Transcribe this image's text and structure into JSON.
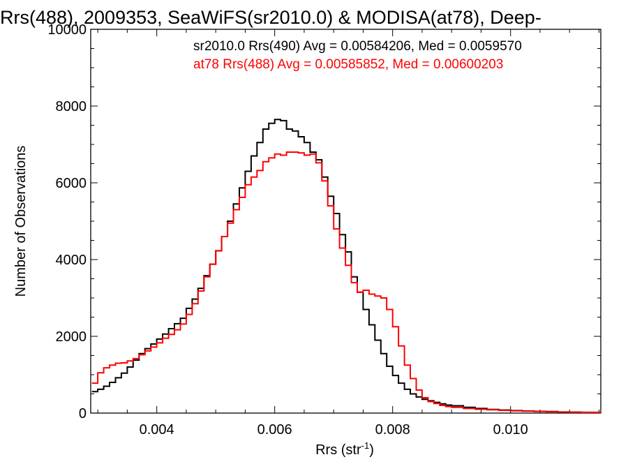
{
  "chart_data": {
    "type": "line",
    "title": "Rrs(488), 2009353, SeaWiFS(sr2010.0) & MODISA(at78), Deep-",
    "xlabel_main": "Rrs (str",
    "xlabel_sup": "-1",
    "xlabel_close": ")",
    "ylabel": "Number of Observations",
    "xlim": [
      0.00288,
      0.01153
    ],
    "ylim": [
      0,
      10000
    ],
    "x_ticks": [
      {
        "value": 0.004,
        "label": "0.004"
      },
      {
        "value": 0.006,
        "label": "0.006"
      },
      {
        "value": 0.008,
        "label": "0.008"
      },
      {
        "value": 0.01,
        "label": "0.010"
      }
    ],
    "y_ticks": [
      {
        "value": 0,
        "label": "0"
      },
      {
        "value": 2000,
        "label": "2000"
      },
      {
        "value": 4000,
        "label": "4000"
      },
      {
        "value": 6000,
        "label": "6000"
      },
      {
        "value": 8000,
        "label": "8000"
      },
      {
        "value": 10000,
        "label": "10000"
      }
    ],
    "grid": false,
    "legend_placement": "top-right",
    "series": [
      {
        "name": "sr2010.0 Rrs(490) Avg = 0.00584206, Med = 0.0059570",
        "color": "#000000",
        "points": [
          [
            0.0029,
            560
          ],
          [
            0.003,
            620
          ],
          [
            0.0031,
            700
          ],
          [
            0.0032,
            800
          ],
          [
            0.0033,
            920
          ],
          [
            0.0034,
            1040
          ],
          [
            0.0035,
            1200
          ],
          [
            0.0036,
            1380
          ],
          [
            0.0037,
            1550
          ],
          [
            0.0038,
            1680
          ],
          [
            0.0039,
            1800
          ],
          [
            0.004,
            1930
          ],
          [
            0.0041,
            2060
          ],
          [
            0.0042,
            2200
          ],
          [
            0.0043,
            2330
          ],
          [
            0.0044,
            2470
          ],
          [
            0.0045,
            2730
          ],
          [
            0.0046,
            2970
          ],
          [
            0.0047,
            3250
          ],
          [
            0.0048,
            3580
          ],
          [
            0.0049,
            3880
          ],
          [
            0.005,
            4230
          ],
          [
            0.0051,
            4600
          ],
          [
            0.0052,
            5000
          ],
          [
            0.0053,
            5450
          ],
          [
            0.0054,
            5870
          ],
          [
            0.0055,
            6300
          ],
          [
            0.0056,
            6700
          ],
          [
            0.0057,
            7050
          ],
          [
            0.0058,
            7400
          ],
          [
            0.0059,
            7550
          ],
          [
            0.006,
            7650
          ],
          [
            0.0061,
            7620
          ],
          [
            0.0062,
            7400
          ],
          [
            0.0063,
            7350
          ],
          [
            0.0064,
            7200
          ],
          [
            0.0065,
            7050
          ],
          [
            0.0066,
            6800
          ],
          [
            0.0067,
            6600
          ],
          [
            0.0068,
            6150
          ],
          [
            0.0069,
            5650
          ],
          [
            0.007,
            5200
          ],
          [
            0.0071,
            4650
          ],
          [
            0.0072,
            4200
          ],
          [
            0.0073,
            3550
          ],
          [
            0.0074,
            3150
          ],
          [
            0.0075,
            2700
          ],
          [
            0.0076,
            2300
          ],
          [
            0.0077,
            1900
          ],
          [
            0.0078,
            1550
          ],
          [
            0.0079,
            1220
          ],
          [
            0.008,
            980
          ],
          [
            0.0081,
            780
          ],
          [
            0.0082,
            620
          ],
          [
            0.0083,
            500
          ],
          [
            0.0084,
            420
          ],
          [
            0.0085,
            360
          ],
          [
            0.0086,
            320
          ],
          [
            0.0087,
            280
          ],
          [
            0.0088,
            240
          ],
          [
            0.0089,
            210
          ],
          [
            0.009,
            190
          ],
          [
            0.0092,
            150
          ],
          [
            0.0094,
            120
          ],
          [
            0.0096,
            95
          ],
          [
            0.0098,
            80
          ],
          [
            0.01,
            65
          ],
          [
            0.0102,
            55
          ],
          [
            0.0104,
            45
          ],
          [
            0.0106,
            40
          ],
          [
            0.0108,
            30
          ],
          [
            0.011,
            25
          ],
          [
            0.0112,
            20
          ],
          [
            0.0115,
            15
          ]
        ]
      },
      {
        "name": "at78 Rrs(488) Avg = 0.00585852, Med = 0.00600203",
        "color": "#ff0000",
        "points": [
          [
            0.0029,
            780
          ],
          [
            0.003,
            1050
          ],
          [
            0.0031,
            1180
          ],
          [
            0.0032,
            1250
          ],
          [
            0.0033,
            1300
          ],
          [
            0.0034,
            1310
          ],
          [
            0.0035,
            1360
          ],
          [
            0.0036,
            1420
          ],
          [
            0.0037,
            1520
          ],
          [
            0.0038,
            1620
          ],
          [
            0.0039,
            1720
          ],
          [
            0.004,
            1830
          ],
          [
            0.0041,
            1950
          ],
          [
            0.0042,
            2050
          ],
          [
            0.0043,
            2170
          ],
          [
            0.0044,
            2320
          ],
          [
            0.0045,
            2570
          ],
          [
            0.0046,
            2850
          ],
          [
            0.0047,
            3180
          ],
          [
            0.0048,
            3550
          ],
          [
            0.0049,
            3880
          ],
          [
            0.005,
            4230
          ],
          [
            0.0051,
            4600
          ],
          [
            0.0052,
            4950
          ],
          [
            0.0053,
            5300
          ],
          [
            0.0054,
            5620
          ],
          [
            0.0055,
            5950
          ],
          [
            0.0056,
            6150
          ],
          [
            0.0057,
            6320
          ],
          [
            0.0058,
            6550
          ],
          [
            0.0059,
            6650
          ],
          [
            0.006,
            6750
          ],
          [
            0.0061,
            6720
          ],
          [
            0.0062,
            6800
          ],
          [
            0.0063,
            6800
          ],
          [
            0.0064,
            6780
          ],
          [
            0.0065,
            6720
          ],
          [
            0.0066,
            6750
          ],
          [
            0.0067,
            6520
          ],
          [
            0.0068,
            6050
          ],
          [
            0.0069,
            5400
          ],
          [
            0.007,
            4800
          ],
          [
            0.0071,
            4300
          ],
          [
            0.0072,
            3850
          ],
          [
            0.0073,
            3400
          ],
          [
            0.0074,
            3150
          ],
          [
            0.0075,
            3200
          ],
          [
            0.0076,
            3100
          ],
          [
            0.0077,
            3050
          ],
          [
            0.0078,
            3000
          ],
          [
            0.0079,
            2700
          ],
          [
            0.008,
            2250
          ],
          [
            0.0081,
            1750
          ],
          [
            0.0082,
            1250
          ],
          [
            0.0083,
            900
          ],
          [
            0.0084,
            600
          ],
          [
            0.0085,
            400
          ],
          [
            0.0086,
            300
          ],
          [
            0.0087,
            250
          ],
          [
            0.0088,
            200
          ],
          [
            0.0089,
            170
          ],
          [
            0.009,
            150
          ],
          [
            0.0092,
            120
          ],
          [
            0.0094,
            100
          ],
          [
            0.0096,
            85
          ],
          [
            0.0098,
            70
          ],
          [
            0.01,
            60
          ],
          [
            0.0102,
            50
          ],
          [
            0.0104,
            40
          ],
          [
            0.0106,
            35
          ],
          [
            0.0108,
            28
          ],
          [
            0.011,
            22
          ],
          [
            0.0112,
            18
          ],
          [
            0.0115,
            14
          ]
        ]
      }
    ]
  }
}
